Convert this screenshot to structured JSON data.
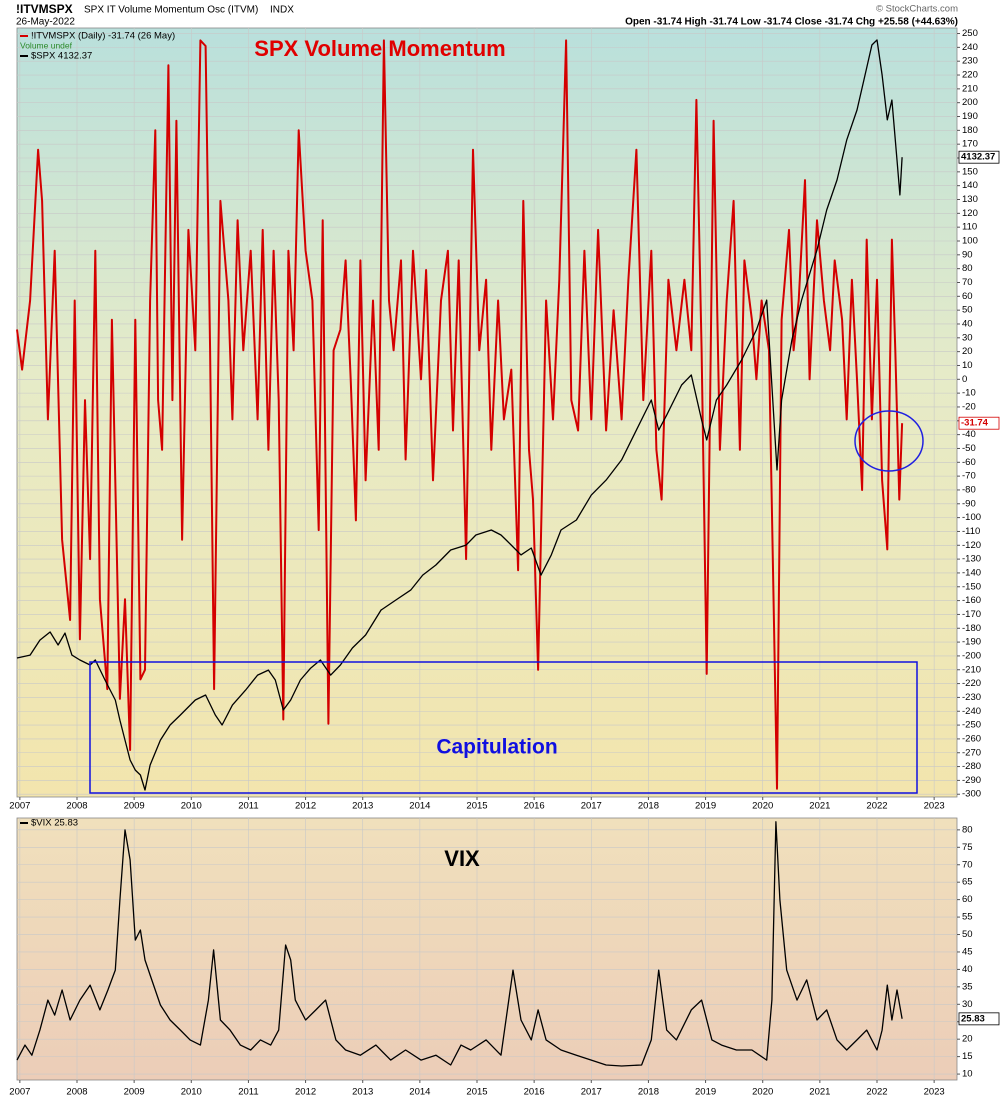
{
  "header": {
    "symbol": "!ITVMSPX",
    "name": "SPX IT Volume Momentum Osc (ITVM)",
    "exchange": "INDX",
    "date": "26-May-2022",
    "quote": "Open -31.74 High -31.74 Low -31.74 Close -31.74 Chg +25.58 (+44.63%)",
    "copyright": "© StockCharts.com"
  },
  "chart_data": [
    {
      "type": "line",
      "annotations": [
        "SPX Volume Momentum",
        "Capitulation"
      ],
      "legend_note": "Volume undef",
      "grid": true,
      "xlim": [
        2006.95,
        2023.4
      ],
      "xticks": [
        2007,
        2008,
        2009,
        2010,
        2011,
        2012,
        2013,
        2014,
        2015,
        2016,
        2017,
        2018,
        2019,
        2020,
        2021,
        2022,
        2023
      ],
      "ylim": [
        -302,
        254
      ],
      "yticks": [
        -300,
        -290,
        -280,
        -270,
        -260,
        -250,
        -240,
        -230,
        -220,
        -210,
        -200,
        -190,
        -180,
        -170,
        -160,
        -150,
        -140,
        -130,
        -120,
        -110,
        -100,
        -90,
        -80,
        -70,
        -60,
        -50,
        -40,
        -30,
        -20,
        -10,
        0,
        10,
        20,
        30,
        40,
        50,
        60,
        70,
        80,
        90,
        100,
        110,
        120,
        130,
        140,
        150,
        160,
        170,
        180,
        190,
        200,
        210,
        220,
        230,
        240,
        250
      ],
      "y2lim": [
        638,
        4838
      ],
      "series": [
        {
          "name": "!ITVMSPX (Daily) -31.74 (26 May)",
          "color": "#d40000",
          "x": [
            2006.95,
            2007.04,
            2007.18,
            2007.32,
            2007.39,
            2007.49,
            2007.61,
            2007.74,
            2007.88,
            2007.96,
            2008.05,
            2008.14,
            2008.23,
            2008.32,
            2008.4,
            2008.53,
            2008.61,
            2008.75,
            2008.84,
            2008.93,
            2009.02,
            2009.11,
            2009.19,
            2009.28,
            2009.37,
            2009.42,
            2009.49,
            2009.6,
            2009.67,
            2009.74,
            2009.84,
            2009.95,
            2010.07,
            2010.16,
            2010.25,
            2010.33,
            2010.4,
            2010.51,
            2010.65,
            2010.72,
            2010.81,
            2010.91,
            2011.04,
            2011.16,
            2011.25,
            2011.35,
            2011.44,
            2011.53,
            2011.61,
            2011.7,
            2011.79,
            2011.88,
            2012.0,
            2012.12,
            2012.23,
            2012.3,
            2012.4,
            2012.49,
            2012.61,
            2012.7,
            2012.79,
            2012.88,
            2012.96,
            2013.05,
            2013.18,
            2013.28,
            2013.37,
            2013.46,
            2013.54,
            2013.67,
            2013.75,
            2013.88,
            2014.02,
            2014.11,
            2014.23,
            2014.37,
            2014.49,
            2014.58,
            2014.68,
            2014.81,
            2014.93,
            2015.04,
            2015.16,
            2015.25,
            2015.37,
            2015.47,
            2015.6,
            2015.72,
            2015.81,
            2015.91,
            2015.98,
            2016.07,
            2016.21,
            2016.33,
            2016.44,
            2016.56,
            2016.65,
            2016.77,
            2016.88,
            2017.0,
            2017.12,
            2017.26,
            2017.39,
            2017.53,
            2017.65,
            2017.79,
            2017.91,
            2018.05,
            2018.14,
            2018.23,
            2018.35,
            2018.49,
            2018.63,
            2018.75,
            2018.84,
            2018.93,
            2019.02,
            2019.14,
            2019.25,
            2019.37,
            2019.49,
            2019.6,
            2019.68,
            2019.81,
            2019.89,
            2019.98,
            2020.11,
            2020.25,
            2020.33,
            2020.46,
            2020.54,
            2020.63,
            2020.74,
            2020.82,
            2020.95,
            2021.07,
            2021.18,
            2021.26,
            2021.39,
            2021.47,
            2021.56,
            2021.65,
            2021.74,
            2021.82,
            2021.91,
            2022.0,
            2022.09,
            2022.18,
            2022.26,
            2022.32,
            2022.39,
            2022.44
          ],
          "values": [
            36,
            7,
            57,
            166,
            129,
            -29,
            93,
            -116,
            -174,
            57,
            -188,
            -15,
            -130,
            93,
            -159,
            -224,
            43,
            -231,
            -159,
            -268,
            43,
            -217,
            -210,
            57,
            180,
            -15,
            -51,
            227,
            -15,
            187,
            -116,
            108,
            21,
            245,
            241,
            21,
            -224,
            129,
            57,
            -29,
            115,
            21,
            93,
            -29,
            108,
            -51,
            93,
            -15,
            -246,
            93,
            21,
            180,
            93,
            57,
            -109,
            115,
            -249,
            21,
            36,
            86,
            0,
            -102,
            86,
            -73,
            57,
            -51,
            245,
            57,
            21,
            86,
            -58,
            93,
            0,
            79,
            -73,
            57,
            93,
            -37,
            86,
            -130,
            166,
            21,
            72,
            -51,
            57,
            -29,
            7,
            -138,
            129,
            -51,
            -87,
            -210,
            57,
            -29,
            72,
            245,
            -15,
            -37,
            93,
            -29,
            108,
            -37,
            50,
            -29,
            72,
            166,
            -15,
            93,
            -51,
            -87,
            72,
            21,
            72,
            21,
            202,
            21,
            -213,
            187,
            -51,
            57,
            129,
            -51,
            86,
            43,
            0,
            57,
            21,
            -296,
            43,
            108,
            21,
            57,
            144,
            0,
            115,
            57,
            21,
            86,
            43,
            -29,
            72,
            0,
            -80,
            101,
            -29,
            72,
            -73,
            -123,
            101,
            21,
            -87,
            -31.74
          ]
        },
        {
          "name": "$SPX 4132.37",
          "color": "#000000",
          "axis": "y2",
          "x": [
            2006.95,
            2007.18,
            2007.35,
            2007.53,
            2007.67,
            2007.79,
            2007.91,
            2008.05,
            2008.23,
            2008.32,
            2008.49,
            2008.67,
            2008.75,
            2008.84,
            2008.93,
            2009.02,
            2009.11,
            2009.19,
            2009.28,
            2009.46,
            2009.63,
            2009.81,
            2010.07,
            2010.25,
            2010.42,
            2010.54,
            2010.72,
            2010.95,
            2011.16,
            2011.35,
            2011.47,
            2011.61,
            2011.74,
            2011.91,
            2012.09,
            2012.26,
            2012.44,
            2012.61,
            2012.82,
            2013.05,
            2013.32,
            2013.58,
            2013.84,
            2014.05,
            2014.28,
            2014.54,
            2014.81,
            2014.98,
            2015.25,
            2015.42,
            2015.6,
            2015.77,
            2015.95,
            2016.12,
            2016.3,
            2016.47,
            2016.74,
            2017.0,
            2017.26,
            2017.53,
            2017.79,
            2018.05,
            2018.18,
            2018.32,
            2018.58,
            2018.75,
            2018.93,
            2019.02,
            2019.19,
            2019.37,
            2019.63,
            2019.89,
            2020.07,
            2020.25,
            2020.33,
            2020.51,
            2020.68,
            2020.95,
            2021.12,
            2021.3,
            2021.47,
            2021.65,
            2021.77,
            2021.91,
            2022.0,
            2022.09,
            2022.18,
            2022.26,
            2022.35,
            2022.4,
            2022.44
          ],
          "values": [
            1397,
            1413,
            1495,
            1539,
            1468,
            1533,
            1413,
            1386,
            1359,
            1386,
            1277,
            1168,
            1058,
            949,
            840,
            785,
            758,
            676,
            812,
            949,
            1031,
            1086,
            1168,
            1195,
            1086,
            1031,
            1140,
            1222,
            1304,
            1331,
            1277,
            1113,
            1168,
            1277,
            1342,
            1386,
            1304,
            1359,
            1452,
            1523,
            1659,
            1714,
            1768,
            1850,
            1905,
            1987,
            2014,
            2069,
            2096,
            2069,
            2014,
            1960,
            1998,
            1850,
            1960,
            2096,
            2151,
            2287,
            2369,
            2479,
            2642,
            2806,
            2642,
            2724,
            2888,
            2943,
            2697,
            2588,
            2806,
            2888,
            3025,
            3189,
            3352,
            2424,
            2806,
            3134,
            3352,
            3626,
            3844,
            4008,
            4226,
            4390,
            4554,
            4745,
            4773,
            4582,
            4336,
            4445,
            4117,
            3926,
            4132.37
          ]
        }
      ]
    },
    {
      "type": "line",
      "annotations": [
        "VIX"
      ],
      "grid": true,
      "xlim": [
        2006.95,
        2023.4
      ],
      "xticks": [
        2007,
        2008,
        2009,
        2010,
        2011,
        2012,
        2013,
        2014,
        2015,
        2016,
        2017,
        2018,
        2019,
        2020,
        2021,
        2022,
        2023
      ],
      "ylim": [
        8.3,
        83.4
      ],
      "yticks": [
        10,
        15,
        20,
        25,
        30,
        35,
        40,
        45,
        50,
        55,
        60,
        65,
        70,
        75,
        80
      ],
      "series": [
        {
          "name": "$VIX 25.83",
          "color": "#000000",
          "x": [
            2006.95,
            2007.09,
            2007.21,
            2007.35,
            2007.49,
            2007.61,
            2007.74,
            2007.88,
            2008.05,
            2008.23,
            2008.4,
            2008.54,
            2008.67,
            2008.75,
            2008.84,
            2008.93,
            2009.02,
            2009.11,
            2009.19,
            2009.28,
            2009.46,
            2009.63,
            2009.81,
            2009.98,
            2010.16,
            2010.3,
            2010.39,
            2010.51,
            2010.68,
            2010.86,
            2011.04,
            2011.21,
            2011.39,
            2011.53,
            2011.65,
            2011.74,
            2011.82,
            2012.0,
            2012.18,
            2012.35,
            2012.53,
            2012.7,
            2012.96,
            2013.23,
            2013.49,
            2013.75,
            2014.02,
            2014.28,
            2014.54,
            2014.72,
            2014.89,
            2015.16,
            2015.42,
            2015.63,
            2015.77,
            2015.95,
            2016.07,
            2016.21,
            2016.47,
            2016.74,
            2017.0,
            2017.26,
            2017.53,
            2017.88,
            2018.05,
            2018.18,
            2018.32,
            2018.49,
            2018.75,
            2018.93,
            2019.11,
            2019.28,
            2019.54,
            2019.81,
            2020.07,
            2020.16,
            2020.23,
            2020.3,
            2020.42,
            2020.6,
            2020.77,
            2020.95,
            2021.12,
            2021.3,
            2021.47,
            2021.65,
            2021.82,
            2022.0,
            2022.09,
            2022.18,
            2022.26,
            2022.35,
            2022.44
          ],
          "values": [
            14,
            18.3,
            15.4,
            22.6,
            31.2,
            26.9,
            34.1,
            25.5,
            31.2,
            35.5,
            28.4,
            34.1,
            39.8,
            59.9,
            80,
            71.4,
            48.4,
            51.3,
            42.7,
            38.4,
            29.8,
            25.5,
            22.6,
            19.8,
            18.3,
            31.2,
            45.6,
            25.5,
            22.6,
            18.3,
            16.9,
            19.8,
            18.3,
            22.6,
            47,
            42.7,
            31.2,
            25.5,
            28.4,
            31.2,
            19.8,
            16.9,
            15.4,
            18.3,
            14,
            16.9,
            14,
            15.4,
            12.6,
            18.3,
            16.9,
            19.8,
            15.4,
            39.8,
            25.5,
            19.8,
            28.4,
            19.8,
            16.9,
            15.4,
            14,
            12.6,
            12.3,
            12.6,
            19.8,
            39.8,
            22.6,
            19.8,
            28.4,
            31.2,
            19.8,
            18.3,
            16.9,
            16.9,
            14,
            31.2,
            82.3,
            59.9,
            39.8,
            31.2,
            37,
            25.5,
            28.4,
            19.8,
            16.9,
            19.8,
            22.6,
            16.9,
            22.6,
            35.5,
            25.5,
            34.1,
            25.83
          ]
        }
      ]
    }
  ]
}
